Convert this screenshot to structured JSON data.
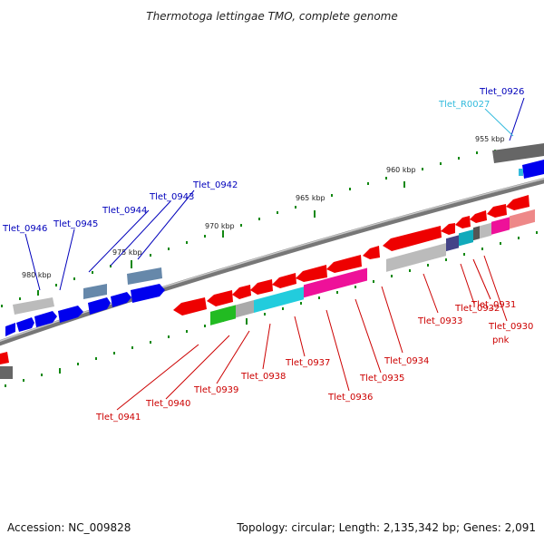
{
  "title": "Thermotoga lettingae TMO, complete genome",
  "footer": {
    "accession": "Accession: NC_009828",
    "stats": "Topology: circular; Length: 2,135,342 bp; Genes: 2,091"
  },
  "scale_labels": [
    "955 kbp",
    "960 kbp",
    "965 kbp",
    "970 kbp",
    "975 kbp",
    "980 kbp"
  ],
  "colors": {
    "forward_label": "#0000bb",
    "reverse_label": "#cc0000",
    "rna_label": "#33bbdd",
    "backbone": "#777777",
    "tick": "#118811"
  },
  "forward_gene_labels": [
    "Tlet_0926",
    "Tlet_R0027",
    "Tlet_0942",
    "Tlet_0943",
    "Tlet_0944",
    "Tlet_0945",
    "Tlet_0946"
  ],
  "reverse_gene_labels": [
    "Tlet_0941",
    "Tlet_0940",
    "Tlet_0939",
    "Tlet_0938",
    "Tlet_0937",
    "Tlet_0936",
    "Tlet_0935",
    "Tlet_0934",
    "Tlet_0933",
    "Tlet_0932",
    "Tlet_0931",
    "Tlet_0930",
    "pnk"
  ]
}
